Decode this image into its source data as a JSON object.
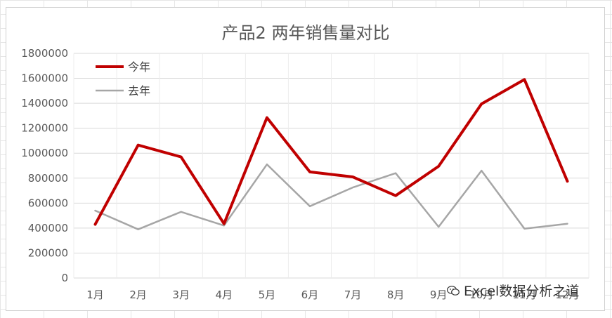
{
  "chart_data": {
    "type": "line",
    "title": "产品2  两年销售量对比",
    "xlabel": "",
    "ylabel": "",
    "categories": [
      "1月",
      "2月",
      "3月",
      "4月",
      "5月",
      "6月",
      "7月",
      "8月",
      "9月",
      "10月",
      "11月",
      "12月"
    ],
    "ylim": [
      0,
      1800000
    ],
    "yticks": [
      0,
      200000,
      400000,
      600000,
      800000,
      1000000,
      1200000,
      1400000,
      1600000,
      1800000
    ],
    "grid": true,
    "legend_position": "top-left",
    "series": [
      {
        "name": "今年",
        "color": "#c00000",
        "values": [
          430000,
          1065000,
          970000,
          435000,
          1285000,
          850000,
          810000,
          660000,
          895000,
          1395000,
          1590000,
          775000
        ]
      },
      {
        "name": "去年",
        "color": "#a6a6a6",
        "values": [
          540000,
          390000,
          530000,
          420000,
          910000,
          575000,
          725000,
          840000,
          410000,
          860000,
          395000,
          435000
        ]
      }
    ]
  },
  "watermark": {
    "icon": "wechat-icon",
    "text": "Excel数据分析之道"
  }
}
